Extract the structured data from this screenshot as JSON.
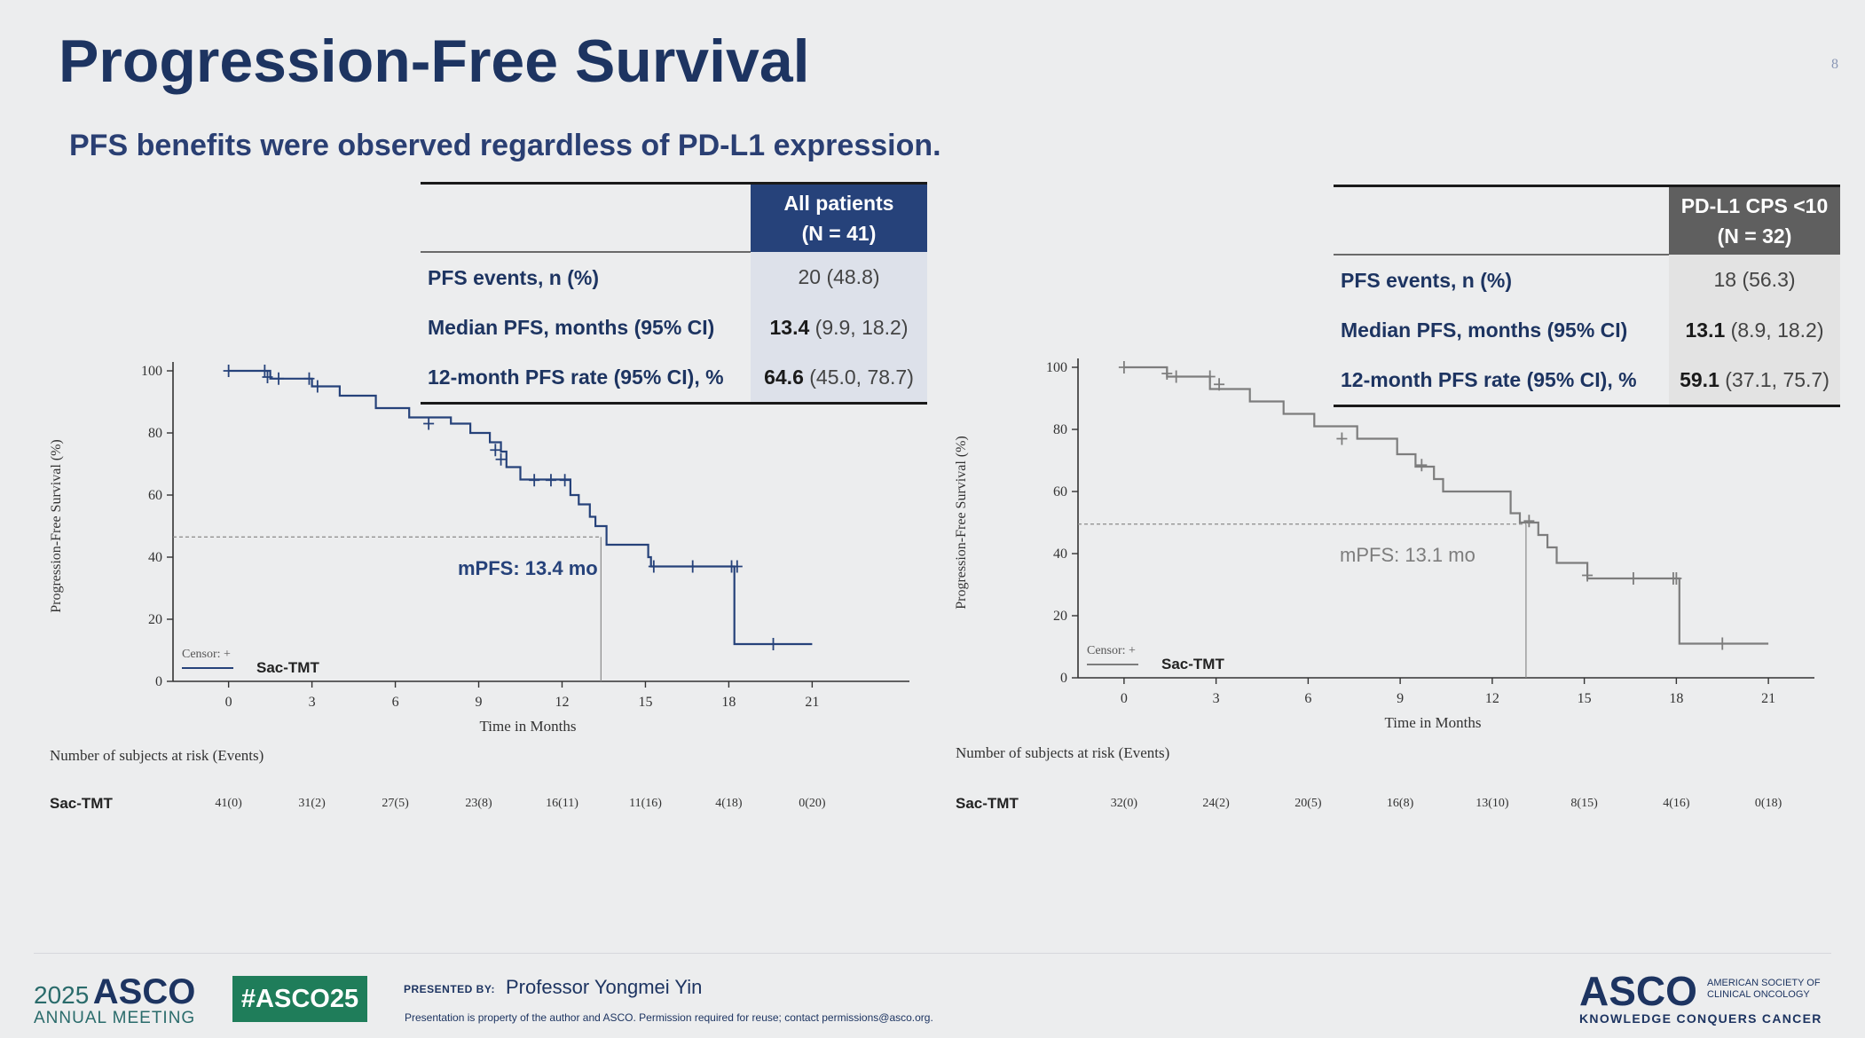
{
  "slide": {
    "title": "Progression-Free Survival",
    "subtitle": "PFS benefits were observed regardless of PD-L1 expression.",
    "page_number": "8"
  },
  "table_left": {
    "header_line1": "All patients",
    "header_line2": "(N = 41)",
    "rows": [
      {
        "label": "PFS events, n (%)",
        "bold_value": "",
        "value": "20 (48.8)"
      },
      {
        "label": "Median PFS, months (95% CI)",
        "bold_value": "13.4",
        "value": "(9.9, 18.2)"
      },
      {
        "label": "12-month PFS rate (95% CI), %",
        "bold_value": "64.6",
        "value": "(45.0, 78.7)"
      }
    ]
  },
  "table_right": {
    "header_line1": "PD-L1 CPS <10",
    "header_line2": "(N = 32)",
    "rows": [
      {
        "label": "PFS events, n (%)",
        "bold_value": "",
        "value": "18 (56.3)"
      },
      {
        "label": "Median PFS, months (95% CI)",
        "bold_value": "13.1",
        "value": "(8.9, 18.2)"
      },
      {
        "label": "12-month PFS rate (95% CI), %",
        "bold_value": "59.1",
        "value": "(37.1, 75.7)"
      }
    ]
  },
  "colors": {
    "navy": "#26427a",
    "gray": "#7d7d7d",
    "title_navy": "#1d3461",
    "asco_green": "#1f7d5a"
  },
  "chart_data": [
    {
      "type": "line",
      "subtype": "kaplan-meier",
      "panel": "All patients",
      "xlabel": "Time in Months",
      "ylabel": "Progression-Free Survival (%)",
      "xlim": [
        -2,
        24.5
      ],
      "ylim": [
        0,
        100
      ],
      "xticks": [
        0,
        3,
        6,
        9,
        12,
        15,
        18,
        21
      ],
      "yticks": [
        0,
        20,
        40,
        60,
        80,
        100
      ],
      "legend": {
        "censor_label": "Censor: +",
        "series_label": "Sac-TMT",
        "position": "bottom-left"
      },
      "median_label": "mPFS: 13.4 mo",
      "median": {
        "x": 13.4,
        "y": 46.5
      },
      "series": [
        {
          "name": "Sac-TMT",
          "steps": [
            [
              0,
              100
            ],
            [
              1.5,
              100
            ],
            [
              1.5,
              97.5
            ],
            [
              3,
              97.5
            ],
            [
              3,
              95
            ],
            [
              4,
              95
            ],
            [
              4,
              92
            ],
            [
              5.3,
              92
            ],
            [
              5.3,
              88
            ],
            [
              6.5,
              88
            ],
            [
              6.5,
              85
            ],
            [
              8,
              85
            ],
            [
              8,
              83
            ],
            [
              8.7,
              83
            ],
            [
              8.7,
              80
            ],
            [
              9.4,
              80
            ],
            [
              9.4,
              77
            ],
            [
              9.8,
              77
            ],
            [
              9.8,
              74
            ],
            [
              10,
              74
            ],
            [
              10,
              69
            ],
            [
              10.5,
              69
            ],
            [
              10.5,
              65
            ],
            [
              12.3,
              65
            ],
            [
              12.3,
              60
            ],
            [
              12.6,
              60
            ],
            [
              12.6,
              57
            ],
            [
              13,
              57
            ],
            [
              13,
              53
            ],
            [
              13.2,
              53
            ],
            [
              13.2,
              50
            ],
            [
              13.6,
              50
            ],
            [
              13.6,
              44
            ],
            [
              15.1,
              44
            ],
            [
              15.1,
              40
            ],
            [
              15.2,
              40
            ],
            [
              15.2,
              37
            ],
            [
              18.2,
              37
            ],
            [
              18.2,
              12
            ],
            [
              21,
              12
            ]
          ],
          "censors": [
            [
              0,
              100
            ],
            [
              1.3,
              100
            ],
            [
              1.4,
              98
            ],
            [
              1.8,
              97.5
            ],
            [
              2.9,
              97.5
            ],
            [
              3.2,
              95
            ],
            [
              7.2,
              83
            ],
            [
              9.6,
              74.5
            ],
            [
              9.8,
              71.5
            ],
            [
              11,
              64.8
            ],
            [
              11.6,
              64.8
            ],
            [
              12.1,
              64.8
            ],
            [
              15.3,
              37
            ],
            [
              16.7,
              37
            ],
            [
              18.1,
              37
            ],
            [
              18.3,
              37
            ],
            [
              19.6,
              12
            ]
          ]
        }
      ],
      "risk_table": {
        "title": "Number of subjects at risk (Events)",
        "row_label": "Sac-TMT",
        "values": [
          "41(0)",
          "31(2)",
          "27(5)",
          "23(8)",
          "16(11)",
          "11(16)",
          "4(18)",
          "0(20)"
        ]
      }
    },
    {
      "type": "line",
      "subtype": "kaplan-meier",
      "panel": "PD-L1 CPS <10",
      "xlabel": "Time in Months",
      "ylabel": "Progression-Free Survival (%)",
      "xlim": [
        -1.5,
        22.5
      ],
      "ylim": [
        0,
        100
      ],
      "xticks": [
        0,
        3,
        6,
        9,
        12,
        15,
        18,
        21
      ],
      "yticks": [
        0,
        20,
        40,
        60,
        80,
        100
      ],
      "legend": {
        "censor_label": "Censor: +",
        "series_label": "Sac-TMT",
        "position": "bottom-left"
      },
      "median_label": "mPFS: 13.1 mo",
      "median": {
        "x": 13.1,
        "y": 49.5
      },
      "series": [
        {
          "name": "Sac-TMT",
          "steps": [
            [
              0,
              100
            ],
            [
              1.4,
              100
            ],
            [
              1.4,
              97
            ],
            [
              2.8,
              97
            ],
            [
              2.8,
              93
            ],
            [
              4.1,
              93
            ],
            [
              4.1,
              89
            ],
            [
              5.2,
              89
            ],
            [
              5.2,
              85
            ],
            [
              6.2,
              85
            ],
            [
              6.2,
              81
            ],
            [
              7.6,
              81
            ],
            [
              7.6,
              77
            ],
            [
              8.9,
              77
            ],
            [
              8.9,
              72
            ],
            [
              9.5,
              72
            ],
            [
              9.5,
              68
            ],
            [
              10.1,
              68
            ],
            [
              10.1,
              64
            ],
            [
              10.4,
              64
            ],
            [
              10.4,
              60
            ],
            [
              12.6,
              60
            ],
            [
              12.6,
              53
            ],
            [
              12.9,
              53
            ],
            [
              12.9,
              50
            ],
            [
              13.5,
              50
            ],
            [
              13.5,
              46
            ],
            [
              13.8,
              46
            ],
            [
              13.8,
              42
            ],
            [
              14.1,
              42
            ],
            [
              14.1,
              37
            ],
            [
              15.1,
              37
            ],
            [
              15.1,
              32
            ],
            [
              18.1,
              32
            ],
            [
              18.1,
              11
            ],
            [
              21,
              11
            ]
          ],
          "censors": [
            [
              0,
              100
            ],
            [
              1.4,
              98
            ],
            [
              1.7,
              97
            ],
            [
              2.8,
              97
            ],
            [
              3.1,
              94.5
            ],
            [
              7.1,
              77
            ],
            [
              9.7,
              68.5
            ],
            [
              13.2,
              50.5
            ],
            [
              15.1,
              33
            ],
            [
              16.6,
              32
            ],
            [
              17.9,
              32
            ],
            [
              18,
              32
            ],
            [
              19.5,
              11
            ]
          ]
        }
      ],
      "risk_table": {
        "title": "Number of subjects at risk (Events)",
        "row_label": "Sac-TMT",
        "values": [
          "32(0)",
          "24(2)",
          "20(5)",
          "16(8)",
          "13(10)",
          "8(15)",
          "4(16)",
          "0(18)"
        ]
      }
    }
  ],
  "footer": {
    "meeting_year": "2025",
    "meeting_brand": "ASCO",
    "meeting_sub": "ANNUAL MEETING",
    "hashtag": "#ASCO25",
    "presented_by_label": "PRESENTED BY:",
    "presenter": "Professor Yongmei Yin",
    "disclaimer": "Presentation is property of the author and ASCO. Permission required for reuse; contact permissions@asco.org.",
    "asco_brand": "ASCO",
    "asco_society": "AMERICAN SOCIETY OF CLINICAL ONCOLOGY",
    "asco_tagline": "KNOWLEDGE CONQUERS CANCER"
  }
}
